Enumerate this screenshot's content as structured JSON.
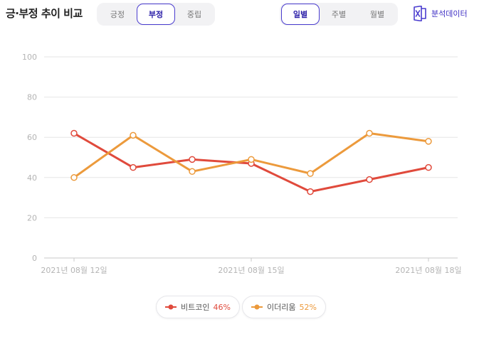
{
  "header": {
    "title": "긍·부정 추이 비교",
    "sentiment_tabs": [
      {
        "label": "긍정",
        "active": false
      },
      {
        "label": "부정",
        "active": true
      },
      {
        "label": "중립",
        "active": false
      }
    ],
    "period_tabs": [
      {
        "label": "일별",
        "active": true
      },
      {
        "label": "주별",
        "active": false
      },
      {
        "label": "월별",
        "active": false
      }
    ],
    "export_label": "분석데이터",
    "export_icon": "excel-icon"
  },
  "legend": [
    {
      "name": "비트코인",
      "percent": "46%",
      "color": "#e04a3c"
    },
    {
      "name": "이더리움",
      "percent": "52%",
      "color": "#ec9a3c"
    }
  ],
  "chart_data": {
    "type": "line",
    "x": [
      "2021-08-12",
      "2021-08-13",
      "2021-08-14",
      "2021-08-15",
      "2021-08-16",
      "2021-08-17",
      "2021-08-18"
    ],
    "xticks": [
      "2021년 08월 12일",
      "2021년 08월 15일",
      "2021년 08월 18일"
    ],
    "ylim": [
      0,
      100
    ],
    "yticks": [
      0,
      20,
      40,
      60,
      80,
      100
    ],
    "grid": true,
    "legend_position": "bottom",
    "series": [
      {
        "name": "비트코인",
        "color": "#e04a3c",
        "values": [
          62,
          45,
          49,
          47,
          33,
          39,
          45
        ]
      },
      {
        "name": "이더리움",
        "color": "#ec9a3c",
        "values": [
          40,
          61,
          43,
          49,
          42,
          62,
          58
        ]
      }
    ]
  }
}
